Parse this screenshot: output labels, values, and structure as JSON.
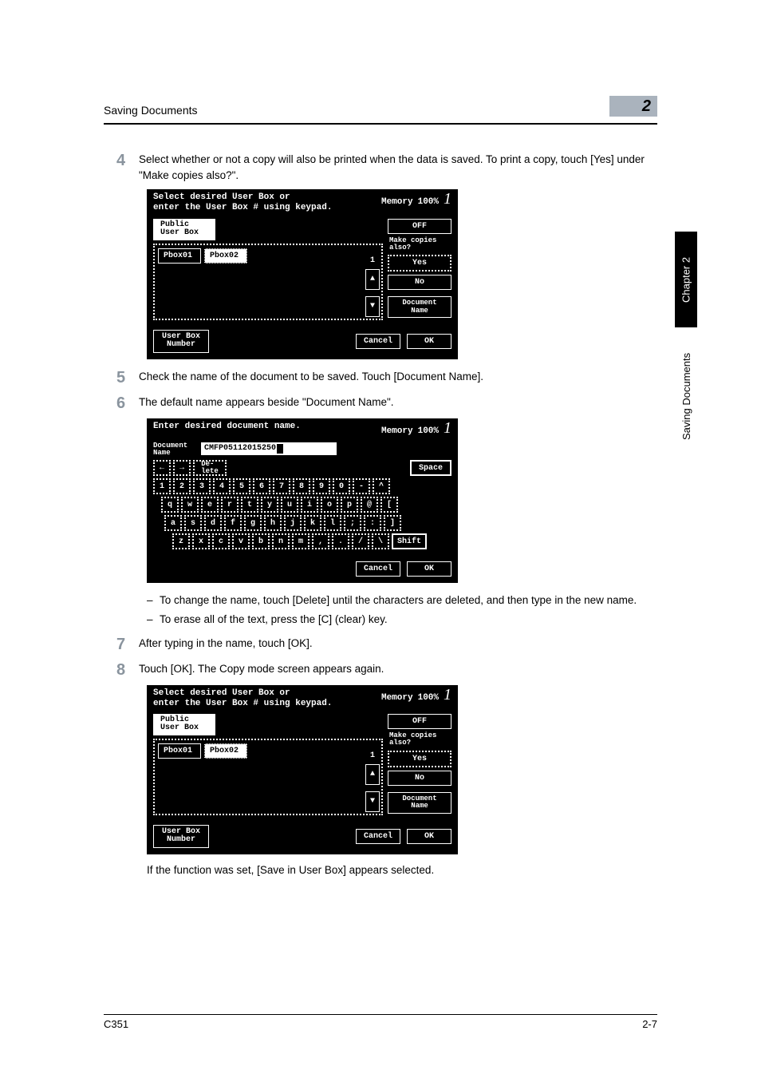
{
  "header": {
    "title": "Saving Documents",
    "badge": "2"
  },
  "sidetab": {
    "chapter": "Chapter 2",
    "section": "Saving Documents"
  },
  "footer": {
    "left": "C351",
    "right": "2-7"
  },
  "step4": {
    "num": "4",
    "text": "Select whether or not a copy will also be printed when the data is saved. To print a copy, touch [Yes] under \"Make copies also?\"."
  },
  "panelA": {
    "title_l1": "Select desired User Box or",
    "title_l2": "enter the User Box # using keypad.",
    "memory": "Memory",
    "mempct": "100%",
    "page": "1",
    "public_tab_l1": "Public",
    "public_tab_l2": "User Box",
    "box1": "Pbox01",
    "box2": "Pbox02",
    "scroll_count": "1",
    "off": "OFF",
    "make_l1": "Make copies",
    "make_l2": "also?",
    "yes": "Yes",
    "no": "No",
    "docname_l1": "Document",
    "docname_l2": "Name",
    "ubn_l1": "User Box",
    "ubn_l2": "Number",
    "cancel": "Cancel",
    "ok": "OK"
  },
  "step5": {
    "num": "5",
    "text": "Check the name of the document to be saved. Touch [Document Name]."
  },
  "step6": {
    "num": "6",
    "text": "The default name appears beside \"Document Name\"."
  },
  "panelB": {
    "title": "Enter desired document name.",
    "memory": "Memory",
    "mempct": "100%",
    "page": "1",
    "docname_l1": "Document",
    "docname_l2": "Name",
    "docname_val": "CMFP05112015250",
    "arrow_left": "←",
    "arrow_right": "→",
    "delete": "De-\nlete",
    "space": "Space",
    "shift": "Shift",
    "row1": [
      "1",
      "2",
      "3",
      "4",
      "5",
      "6",
      "7",
      "8",
      "9",
      "0",
      "-",
      "^"
    ],
    "row2": [
      "q",
      "w",
      "e",
      "r",
      "t",
      "y",
      "u",
      "i",
      "o",
      "p",
      "@",
      "["
    ],
    "row3": [
      "a",
      "s",
      "d",
      "f",
      "g",
      "h",
      "j",
      "k",
      "l",
      ";",
      ":",
      "]"
    ],
    "row4": [
      "z",
      "x",
      "c",
      "v",
      "b",
      "n",
      "m",
      ",",
      ".",
      "/",
      "\\"
    ],
    "cancel": "Cancel",
    "ok": "OK"
  },
  "sub1": "To change the name, touch [Delete] until the characters are deleted, and then type in the new name.",
  "sub2": "To erase all of the text, press the [C] (clear) key.",
  "step7": {
    "num": "7",
    "text": "After typing in the name, touch [OK]."
  },
  "step8": {
    "num": "8",
    "text": "Touch [OK]. The Copy mode screen appears again."
  },
  "panelC": {
    "title_l1": "Select desired User Box or",
    "title_l2": "enter the User Box # using keypad.",
    "memory": "Memory",
    "mempct": "100%",
    "page": "1",
    "public_tab_l1": "Public",
    "public_tab_l2": "User Box",
    "box1": "Pbox01",
    "box2": "Pbox02",
    "scroll_count": "1",
    "off": "OFF",
    "make_l1": "Make copies",
    "make_l2": "also?",
    "yes": "Yes",
    "no": "No",
    "docname_l1": "Document",
    "docname_l2": "Name",
    "ubn_l1": "User Box",
    "ubn_l2": "Number",
    "cancel": "Cancel",
    "ok": "OK"
  },
  "closing": "If the function was set, [Save in User Box] appears selected."
}
